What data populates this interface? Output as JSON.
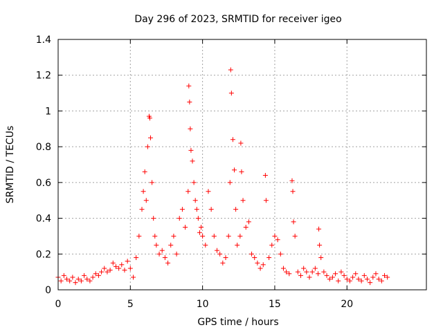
{
  "chart_data": {
    "type": "scatter",
    "title": "Day 296 of 2023, SRMTID for receiver igeo",
    "xlabel": "GPS time / hours",
    "ylabel": "SRMTID / TECUs",
    "xlim": [
      0,
      25.5
    ],
    "ylim": [
      0,
      1.4
    ],
    "xticks": [
      0,
      5,
      10,
      15,
      20
    ],
    "xtick_labels": [
      "0",
      "5",
      "10",
      "15",
      "20"
    ],
    "yticks": [
      0,
      0.2,
      0.4,
      0.6,
      0.8,
      1.0,
      1.2,
      1.4
    ],
    "ytick_labels": [
      "0",
      "0.2",
      "0.4",
      "0.6",
      "0.8",
      "1",
      "1.2",
      "1.4"
    ],
    "grid": true,
    "marker": "+",
    "color": "#ff0000",
    "series": [
      {
        "name": "SRMTID",
        "x": [
          0.0,
          0.2,
          0.4,
          0.6,
          0.8,
          1.0,
          1.2,
          1.4,
          1.6,
          1.8,
          2.0,
          2.2,
          2.4,
          2.6,
          2.8,
          3.0,
          3.2,
          3.4,
          3.6,
          3.8,
          4.0,
          4.2,
          4.4,
          4.6,
          4.8,
          5.0,
          5.2,
          5.4,
          5.6,
          5.8,
          5.9,
          6.0,
          6.1,
          6.2,
          6.3,
          6.35,
          6.4,
          6.5,
          6.6,
          6.7,
          6.8,
          7.0,
          7.2,
          7.4,
          7.6,
          7.8,
          8.0,
          8.2,
          8.4,
          8.6,
          8.8,
          9.0,
          9.05,
          9.1,
          9.15,
          9.2,
          9.3,
          9.4,
          9.5,
          9.6,
          9.7,
          9.8,
          9.9,
          10.0,
          10.2,
          10.4,
          10.6,
          10.8,
          11.0,
          11.2,
          11.4,
          11.6,
          11.8,
          11.9,
          11.95,
          12.0,
          12.1,
          12.2,
          12.3,
          12.4,
          12.6,
          12.65,
          12.7,
          12.8,
          13.0,
          13.2,
          13.4,
          13.6,
          13.8,
          14.0,
          14.2,
          14.35,
          14.4,
          14.6,
          14.8,
          15.0,
          15.2,
          15.4,
          15.6,
          15.8,
          16.0,
          16.2,
          16.25,
          16.3,
          16.4,
          16.6,
          16.8,
          17.0,
          17.2,
          17.4,
          17.6,
          17.8,
          18.0,
          18.05,
          18.1,
          18.2,
          18.4,
          18.6,
          18.8,
          19.0,
          19.2,
          19.4,
          19.6,
          19.8,
          20.0,
          20.2,
          20.4,
          20.6,
          20.8,
          21.0,
          21.2,
          21.4,
          21.6,
          21.8,
          22.0,
          22.2,
          22.4,
          22.6,
          22.8
        ],
        "values": [
          0.07,
          0.05,
          0.08,
          0.06,
          0.05,
          0.07,
          0.04,
          0.06,
          0.05,
          0.08,
          0.06,
          0.05,
          0.07,
          0.09,
          0.08,
          0.1,
          0.12,
          0.1,
          0.11,
          0.15,
          0.13,
          0.12,
          0.14,
          0.11,
          0.16,
          0.12,
          0.07,
          0.18,
          0.3,
          0.45,
          0.55,
          0.66,
          0.5,
          0.8,
          0.97,
          0.96,
          0.85,
          0.6,
          0.4,
          0.3,
          0.25,
          0.2,
          0.22,
          0.18,
          0.15,
          0.25,
          0.3,
          0.2,
          0.4,
          0.45,
          0.35,
          0.55,
          1.14,
          1.05,
          0.9,
          0.78,
          0.72,
          0.6,
          0.5,
          0.45,
          0.4,
          0.32,
          0.35,
          0.3,
          0.25,
          0.55,
          0.45,
          0.3,
          0.22,
          0.2,
          0.15,
          0.18,
          0.3,
          0.6,
          1.23,
          1.1,
          0.84,
          0.67,
          0.45,
          0.25,
          0.3,
          0.82,
          0.66,
          0.5,
          0.35,
          0.38,
          0.2,
          0.18,
          0.15,
          0.12,
          0.14,
          0.64,
          0.5,
          0.18,
          0.25,
          0.3,
          0.28,
          0.2,
          0.12,
          0.1,
          0.09,
          0.61,
          0.55,
          0.38,
          0.3,
          0.1,
          0.08,
          0.12,
          0.1,
          0.07,
          0.1,
          0.12,
          0.09,
          0.34,
          0.25,
          0.18,
          0.1,
          0.08,
          0.06,
          0.07,
          0.09,
          0.05,
          0.1,
          0.08,
          0.06,
          0.05,
          0.07,
          0.09,
          0.06,
          0.05,
          0.08,
          0.06,
          0.04,
          0.07,
          0.09,
          0.06,
          0.05,
          0.08,
          0.07
        ]
      }
    ]
  }
}
